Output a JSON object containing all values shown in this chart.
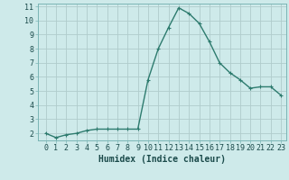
{
  "x": [
    0,
    1,
    2,
    3,
    4,
    5,
    6,
    7,
    8,
    9,
    10,
    11,
    12,
    13,
    14,
    15,
    16,
    17,
    18,
    19,
    20,
    21,
    22,
    23
  ],
  "y": [
    2.0,
    1.7,
    1.9,
    2.0,
    2.2,
    2.3,
    2.3,
    2.3,
    2.3,
    2.3,
    5.8,
    8.0,
    9.5,
    10.9,
    10.5,
    9.8,
    8.5,
    7.0,
    6.3,
    5.8,
    5.2,
    5.3,
    5.3,
    4.7
  ],
  "line_color": "#2d7b6e",
  "marker": "+",
  "marker_size": 3,
  "line_width": 1.0,
  "bg_color": "#ceeaea",
  "grid_color": "#b0cccc",
  "xlabel": "Humidex (Indice chaleur)",
  "xlabel_fontsize": 7,
  "tick_fontsize": 6,
  "ylim": [
    1.5,
    11.2
  ],
  "yticks": [
    2,
    3,
    4,
    5,
    6,
    7,
    8,
    9,
    10,
    11
  ],
  "xticks": [
    0,
    1,
    2,
    3,
    4,
    5,
    6,
    7,
    8,
    9,
    10,
    11,
    12,
    13,
    14,
    15,
    16,
    17,
    18,
    19,
    20,
    21,
    22,
    23
  ],
  "text_color": "#1a4a4a"
}
